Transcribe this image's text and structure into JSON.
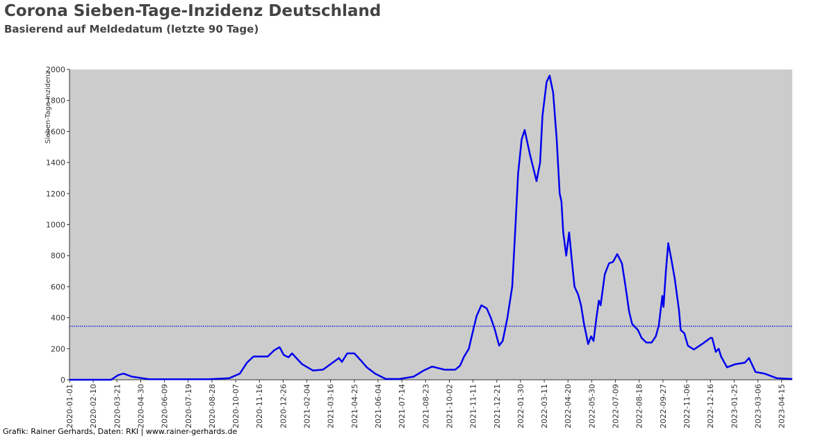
{
  "chart_data": {
    "type": "line",
    "title": "Corona Sieben-Tage-Inzidenz Deutschland",
    "subtitle": "Basierend auf Meldedatum (letzte 90 Tage)",
    "y_label": "Sieben-Tage-Inzidenz",
    "footer": "Grafik: Rainer Gerhards, Daten: RKI | www.rainer-gerhards.de",
    "xlim": [
      "2020-01-01",
      "2023-05-03"
    ],
    "xticks": [
      "2020-01-01",
      "2020-02-10",
      "2020-03-21",
      "2020-04-30",
      "2020-06-09",
      "2020-07-19",
      "2020-08-28",
      "2020-10-07",
      "2020-11-16",
      "2020-12-26",
      "2021-02-04",
      "2021-03-16",
      "2021-04-25",
      "2021-06-04",
      "2021-07-14",
      "2021-08-23",
      "2021-10-02",
      "2021-11-11",
      "2021-12-21",
      "2022-01-30",
      "2022-03-11",
      "2022-04-20",
      "2022-05-30",
      "2022-07-09",
      "2022-08-18",
      "2022-09-27",
      "2022-11-06",
      "2022-12-16",
      "2023-01-25",
      "2023-03-06",
      "2023-04-15"
    ],
    "ylim": [
      0,
      2000
    ],
    "yticks": [
      0,
      200,
      400,
      600,
      800,
      1000,
      1200,
      1400,
      1600,
      1800,
      2000
    ],
    "reference_line": {
      "value": 345,
      "color": "#0000cc"
    },
    "background": "#cccccc",
    "x": [
      "2020-01-01",
      "2020-03-11",
      "2020-03-23",
      "2020-04-01",
      "2020-04-15",
      "2020-05-15",
      "2020-08-22",
      "2020-09-26",
      "2020-10-14",
      "2020-10-26",
      "2020-11-06",
      "2020-11-30",
      "2020-12-11",
      "2020-12-20",
      "2020-12-27",
      "2021-01-04",
      "2021-01-10",
      "2021-01-27",
      "2021-02-14",
      "2021-03-03",
      "2021-03-30",
      "2021-04-04",
      "2021-04-13",
      "2021-04-25",
      "2021-05-07",
      "2021-05-16",
      "2021-05-30",
      "2021-06-17",
      "2021-07-10",
      "2021-08-03",
      "2021-08-20",
      "2021-09-03",
      "2021-09-24",
      "2021-10-12",
      "2021-10-20",
      "2021-10-27",
      "2021-11-04",
      "2021-11-10",
      "2021-11-17",
      "2021-11-25",
      "2021-12-04",
      "2021-12-11",
      "2021-12-18",
      "2021-12-25",
      "2021-12-31",
      "2022-01-08",
      "2022-01-16",
      "2022-01-21",
      "2022-01-26",
      "2022-02-01",
      "2022-02-06",
      "2022-02-15",
      "2022-02-26",
      "2022-03-04",
      "2022-03-08",
      "2022-03-15",
      "2022-03-20",
      "2022-03-26",
      "2022-04-01",
      "2022-04-06",
      "2022-04-09",
      "2022-04-12",
      "2022-04-17",
      "2022-04-22",
      "2022-04-27",
      "2022-05-01",
      "2022-05-07",
      "2022-05-12",
      "2022-05-17",
      "2022-05-24",
      "2022-05-29",
      "2022-06-02",
      "2022-06-07",
      "2022-06-11",
      "2022-06-14",
      "2022-06-21",
      "2022-06-28",
      "2022-07-05",
      "2022-07-12",
      "2022-07-20",
      "2022-07-26",
      "2022-08-01",
      "2022-08-06",
      "2022-08-16",
      "2022-08-22",
      "2022-08-30",
      "2022-09-08",
      "2022-09-15",
      "2022-09-20",
      "2022-09-26",
      "2022-09-28",
      "2022-10-02",
      "2022-10-06",
      "2022-10-11",
      "2022-10-17",
      "2022-10-24",
      "2022-10-27",
      "2022-11-02",
      "2022-11-08",
      "2022-11-18",
      "2022-12-02",
      "2022-12-16",
      "2022-12-19",
      "2022-12-25",
      "2022-12-30",
      "2023-01-03",
      "2023-01-13",
      "2023-01-27",
      "2023-02-12",
      "2023-02-19",
      "2023-03-02",
      "2023-03-17",
      "2023-04-07",
      "2023-05-03"
    ],
    "series": [
      {
        "name": "Sieben-Tage-Inzidenz",
        "color": "#0000ee",
        "values": [
          0,
          0,
          30,
          40,
          20,
          3,
          3,
          10,
          40,
          110,
          150,
          150,
          190,
          210,
          160,
          145,
          170,
          100,
          60,
          65,
          140,
          115,
          170,
          170,
          120,
          80,
          40,
          5,
          5,
          20,
          60,
          85,
          65,
          65,
          90,
          150,
          200,
          300,
          410,
          480,
          460,
          400,
          320,
          220,
          250,
          400,
          600,
          950,
          1330,
          1550,
          1610,
          1450,
          1280,
          1400,
          1700,
          1920,
          1960,
          1850,
          1550,
          1200,
          1150,
          950,
          800,
          950,
          750,
          600,
          550,
          480,
          360,
          230,
          280,
          250,
          400,
          510,
          480,
          680,
          750,
          760,
          810,
          750,
          600,
          440,
          360,
          320,
          270,
          240,
          240,
          280,
          350,
          540,
          470,
          700,
          880,
          780,
          650,
          450,
          320,
          300,
          220,
          195,
          230,
          270,
          270,
          180,
          200,
          150,
          80,
          100,
          110,
          140,
          50,
          40,
          10,
          5
        ]
      }
    ]
  }
}
